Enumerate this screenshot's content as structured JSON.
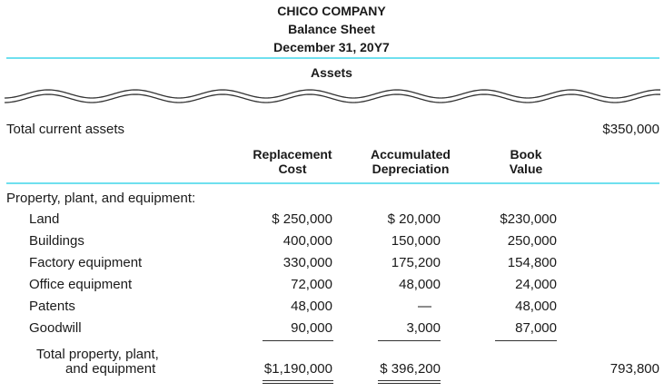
{
  "header": {
    "company": "CHICO COMPANY",
    "statement": "Balance Sheet",
    "date": "December 31, 20Y7",
    "section": "Assets"
  },
  "current": {
    "label": "Total current assets",
    "value": "$350,000"
  },
  "columns": [
    {
      "line1": "Replacement",
      "line2": "Cost"
    },
    {
      "line1": "Accumulated",
      "line2": "Depreciation"
    },
    {
      "line1": "Book",
      "line2": "Value"
    }
  ],
  "ppe": {
    "heading": "Property, plant, and equipment:",
    "rows": [
      {
        "label": "Land",
        "cost": "$  250,000",
        "dep": "$  20,000",
        "book": "$230,000"
      },
      {
        "label": "Buildings",
        "cost": "400,000",
        "dep": "150,000",
        "book": "250,000"
      },
      {
        "label": "Factory equipment",
        "cost": "330,000",
        "dep": "175,200",
        "book": "154,800"
      },
      {
        "label": "Office equipment",
        "cost": "72,000",
        "dep": "48,000",
        "book": "24,000"
      },
      {
        "label": "Patents",
        "cost": "48,000",
        "dep": "—",
        "book": "48,000"
      },
      {
        "label": "Goodwill",
        "cost": "90,000",
        "dep": "3,000",
        "book": "87,000"
      }
    ],
    "total": {
      "label1": "Total property, plant,",
      "label2": "and equipment",
      "cost": "$1,190,000",
      "dep": "$ 396,200",
      "value": "793,800"
    }
  },
  "colors": {
    "rule": "#6fe0ef"
  }
}
